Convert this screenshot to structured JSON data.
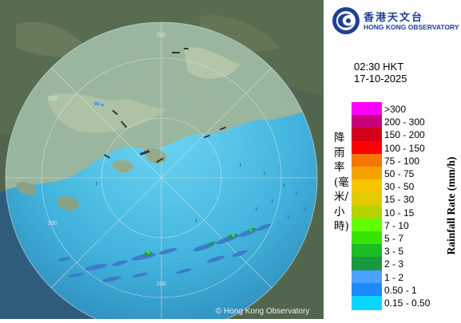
{
  "map": {
    "copyright": "© Hong Kong Observatory",
    "ring_labels": [
      "200",
      "200",
      "200",
      "200"
    ]
  },
  "brand": {
    "name_cn": "香港天文台",
    "name_en": "HONG KONG OBSERVATORY",
    "color": "#1f3f93"
  },
  "timestamp": {
    "time": "02:30 HKT",
    "date": "17-10-2025"
  },
  "legend": {
    "unit_cn": "降雨率(毫米/小時)",
    "unit_en": "Rainfall Rate (mm/h)",
    "items": [
      {
        "label": ">300",
        "color": "#ff00ff"
      },
      {
        "label": "200 - 300",
        "color": "#c8007e"
      },
      {
        "label": "150 - 200",
        "color": "#d2001a"
      },
      {
        "label": "100 - 150",
        "color": "#ff0000"
      },
      {
        "label": "75 - 100",
        "color": "#f57600"
      },
      {
        "label": "50 - 75",
        "color": "#f5a200"
      },
      {
        "label": "30 - 50",
        "color": "#f7c600"
      },
      {
        "label": "15 - 30",
        "color": "#e1cb00"
      },
      {
        "label": "10 - 15",
        "color": "#b4d400"
      },
      {
        "label": "7 - 10",
        "color": "#62ff00"
      },
      {
        "label": "5 - 7",
        "color": "#37e400"
      },
      {
        "label": "3 - 5",
        "color": "#1dbc25"
      },
      {
        "label": "2 - 3",
        "color": "#1a9a3e"
      },
      {
        "label": "1 - 2",
        "color": "#4aa2ff"
      },
      {
        "label": "0.50 - 1",
        "color": "#1e88ff"
      },
      {
        "label": "0.15 - 0.50",
        "color": "#0ad6ff"
      }
    ]
  }
}
